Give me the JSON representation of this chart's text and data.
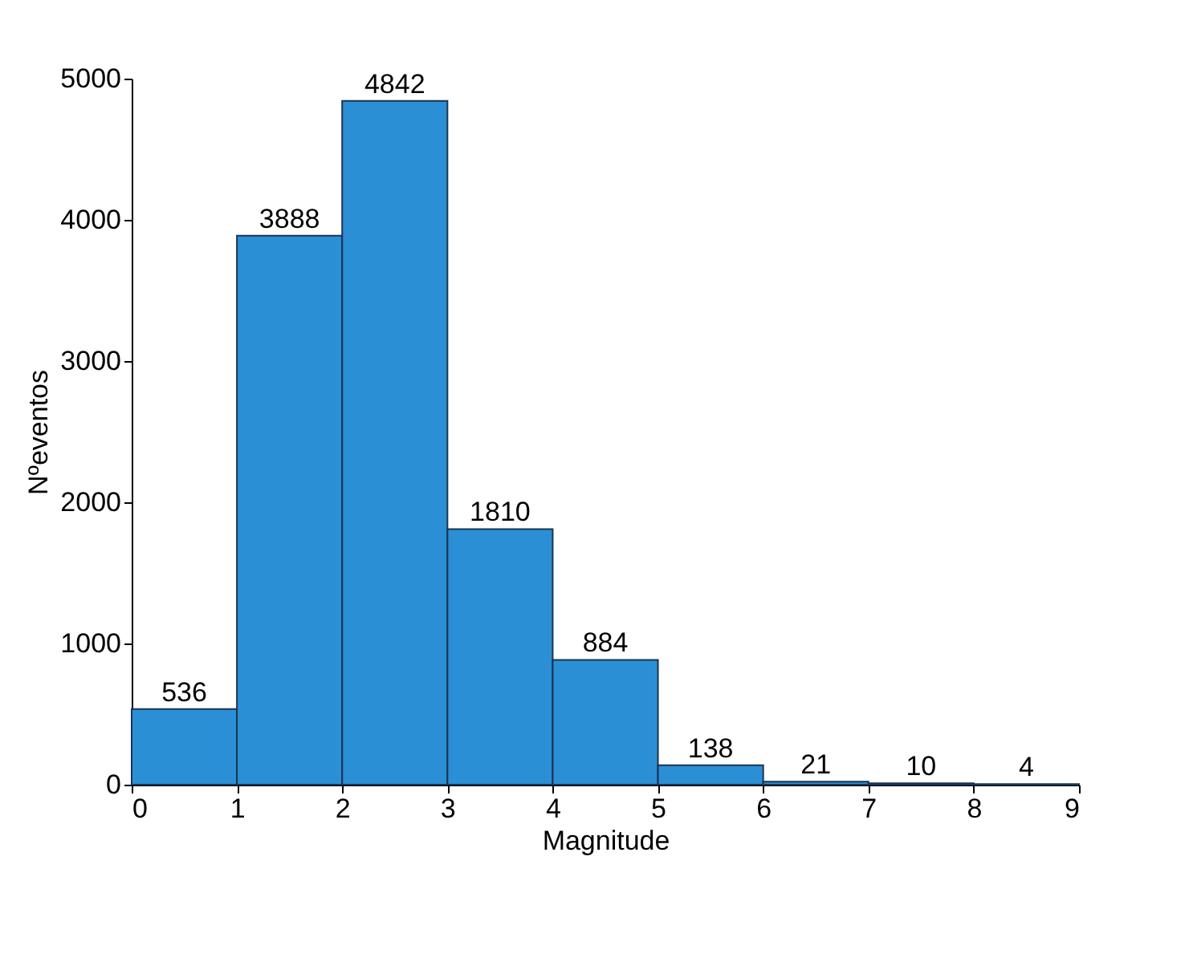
{
  "chart_data": {
    "type": "histogram",
    "xlabel": "Magnitude",
    "ylabel": "Nºeventos",
    "bins": [
      0,
      1,
      2,
      3,
      4,
      5,
      6,
      7,
      8,
      9
    ],
    "values": [
      536,
      3888,
      4842,
      1810,
      884,
      138,
      21,
      10,
      4
    ],
    "color": "#2b8fd6",
    "xlim": [
      0,
      9
    ],
    "xticks": [
      0,
      1,
      2,
      3,
      4,
      5,
      6,
      7,
      8,
      9
    ],
    "ylim": [
      0,
      5000
    ],
    "yticks": [
      0,
      1000,
      2000,
      3000,
      4000,
      5000
    ],
    "data_labels": true,
    "grid": false
  }
}
